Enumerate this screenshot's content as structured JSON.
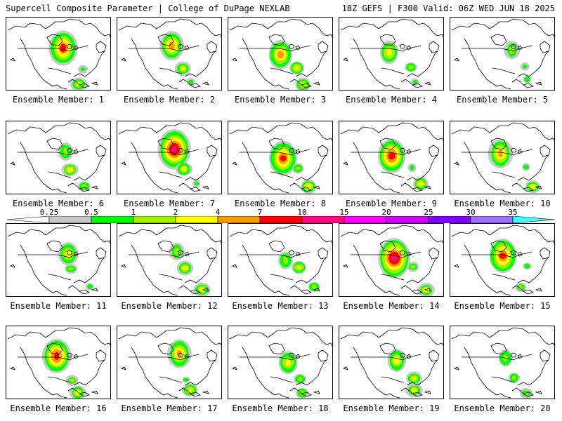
{
  "header": {
    "title_left": "Supercell Composite Parameter | College of DuPage NEXLAB",
    "title_right": "18Z GEFS | F300 Valid: 06Z WED JUN 18 2025"
  },
  "label_prefix": "Ensemble Member: ",
  "members": [
    {
      "id": 1,
      "label": "Ensemble Member: 1"
    },
    {
      "id": 2,
      "label": "Ensemble Member: 2"
    },
    {
      "id": 3,
      "label": "Ensemble Member: 3"
    },
    {
      "id": 4,
      "label": "Ensemble Member: 4"
    },
    {
      "id": 5,
      "label": "Ensemble Member: 5"
    },
    {
      "id": 6,
      "label": "Ensemble Member: 6"
    },
    {
      "id": 7,
      "label": "Ensemble Member: 7"
    },
    {
      "id": 8,
      "label": "Ensemble Member: 8"
    },
    {
      "id": 9,
      "label": "Ensemble Member: 9"
    },
    {
      "id": 10,
      "label": "Ensemble Member: 10"
    },
    {
      "id": 11,
      "label": "Ensemble Member: 11"
    },
    {
      "id": 12,
      "label": "Ensemble Member: 12"
    },
    {
      "id": 13,
      "label": "Ensemble Member: 13"
    },
    {
      "id": 14,
      "label": "Ensemble Member: 14"
    },
    {
      "id": 15,
      "label": "Ensemble Member: 15"
    },
    {
      "id": 16,
      "label": "Ensemble Member: 16"
    },
    {
      "id": 17,
      "label": "Ensemble Member: 17"
    },
    {
      "id": 18,
      "label": "Ensemble Member: 18"
    },
    {
      "id": 19,
      "label": "Ensemble Member: 19"
    },
    {
      "id": 20,
      "label": "Ensemble Member: 20"
    }
  ],
  "selected_member": 20,
  "colorbar": {
    "ticks": [
      "0.25",
      "0.5",
      "1",
      "2",
      "4",
      "7",
      "10",
      "15",
      "20",
      "25",
      "30",
      "35"
    ],
    "colors": [
      "#ffffff",
      "#c8c8c8",
      "#00ff00",
      "#a0f000",
      "#ffff00",
      "#ff9900",
      "#ff0000",
      "#ff0a80",
      "#ff00ff",
      "#d000ff",
      "#8000ff",
      "#a070ff",
      "#40ffff"
    ]
  }
}
